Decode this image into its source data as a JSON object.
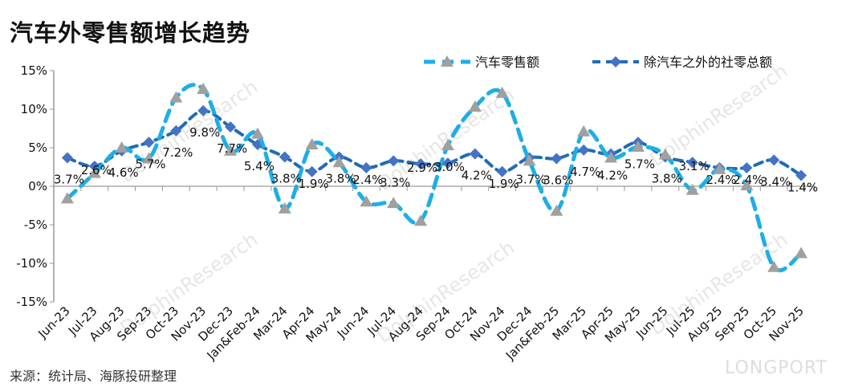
{
  "title": "汽车外零售额增长趋势",
  "source": "来源：统计局、海豚投研整理",
  "logo": "LONGPORT",
  "watermark": "DolphinResearch",
  "chart_data": {
    "type": "line",
    "title": "汽车外零售额增长趋势",
    "xlabel": "",
    "ylabel": "",
    "ylim": [
      -15,
      15
    ],
    "yticks": [
      -15,
      -10,
      -5,
      0,
      5,
      10,
      15
    ],
    "ytick_labels": [
      "-15%",
      "-10%",
      "-5%",
      "0%",
      "5%",
      "10%",
      "15%"
    ],
    "legend_position": "top-right",
    "categories": [
      "Jun-23",
      "Jul-23",
      "Aug-23",
      "Sep-23",
      "Oct-23",
      "Nov-23",
      "Dec-23",
      "Jan&Feb-24",
      "Mar-24",
      "Apr-24",
      "May-24",
      "Jun-24",
      "Jul-24",
      "Aug-24",
      "Sep-24",
      "Oct-24",
      "Nov-24",
      "Dec-24",
      "Jan&Feb-25",
      "Mar-25",
      "Apr-25",
      "May-25",
      "Jun-25",
      "Jul-25",
      "Aug-25",
      "Sep-25",
      "Oct-25",
      "Nov-25"
    ],
    "series": [
      {
        "name": "汽车零售额",
        "color": "#1eaee6",
        "marker": "triangle",
        "marker_color": "#a0a0a0",
        "values": [
          -1.6,
          1.7,
          5.0,
          3.6,
          11.5,
          12.6,
          4.6,
          6.8,
          -2.9,
          5.4,
          3.1,
          -2.0,
          -2.2,
          -4.5,
          5.3,
          10.3,
          12.1,
          3.3,
          -3.2,
          7.1,
          3.7,
          5.1,
          4.1,
          -0.5,
          2.2,
          0.1,
          -10.5,
          -8.7
        ]
      },
      {
        "name": "除汽车之外的社零总额",
        "color": "#1f6cb4",
        "marker": "diamond",
        "marker_color": "#4472c4",
        "values": [
          3.7,
          2.6,
          4.6,
          5.7,
          7.2,
          9.8,
          7.7,
          5.4,
          3.8,
          1.9,
          3.8,
          2.4,
          3.3,
          2.9,
          3.0,
          4.2,
          1.9,
          3.7,
          3.6,
          4.7,
          4.2,
          5.7,
          3.8,
          3.1,
          2.4,
          2.4,
          3.4,
          1.4
        ],
        "labels": [
          "3.7%",
          "2.6%",
          "4.6%",
          "5.7%",
          "7.2%",
          "9.8%",
          "7.7%",
          "5.4%",
          "3.8%",
          "1.9%",
          "3.8%",
          "2.4%",
          "3.3%",
          "2.9%",
          "3.0%",
          "4.2%",
          "1.9%",
          "3.7%",
          "3.6%",
          "4.7%",
          "4.2%",
          "5.7%",
          "3.8%",
          "3.1%",
          "2.4%",
          "2.4%",
          "3.4%",
          "1.4%"
        ]
      }
    ]
  }
}
